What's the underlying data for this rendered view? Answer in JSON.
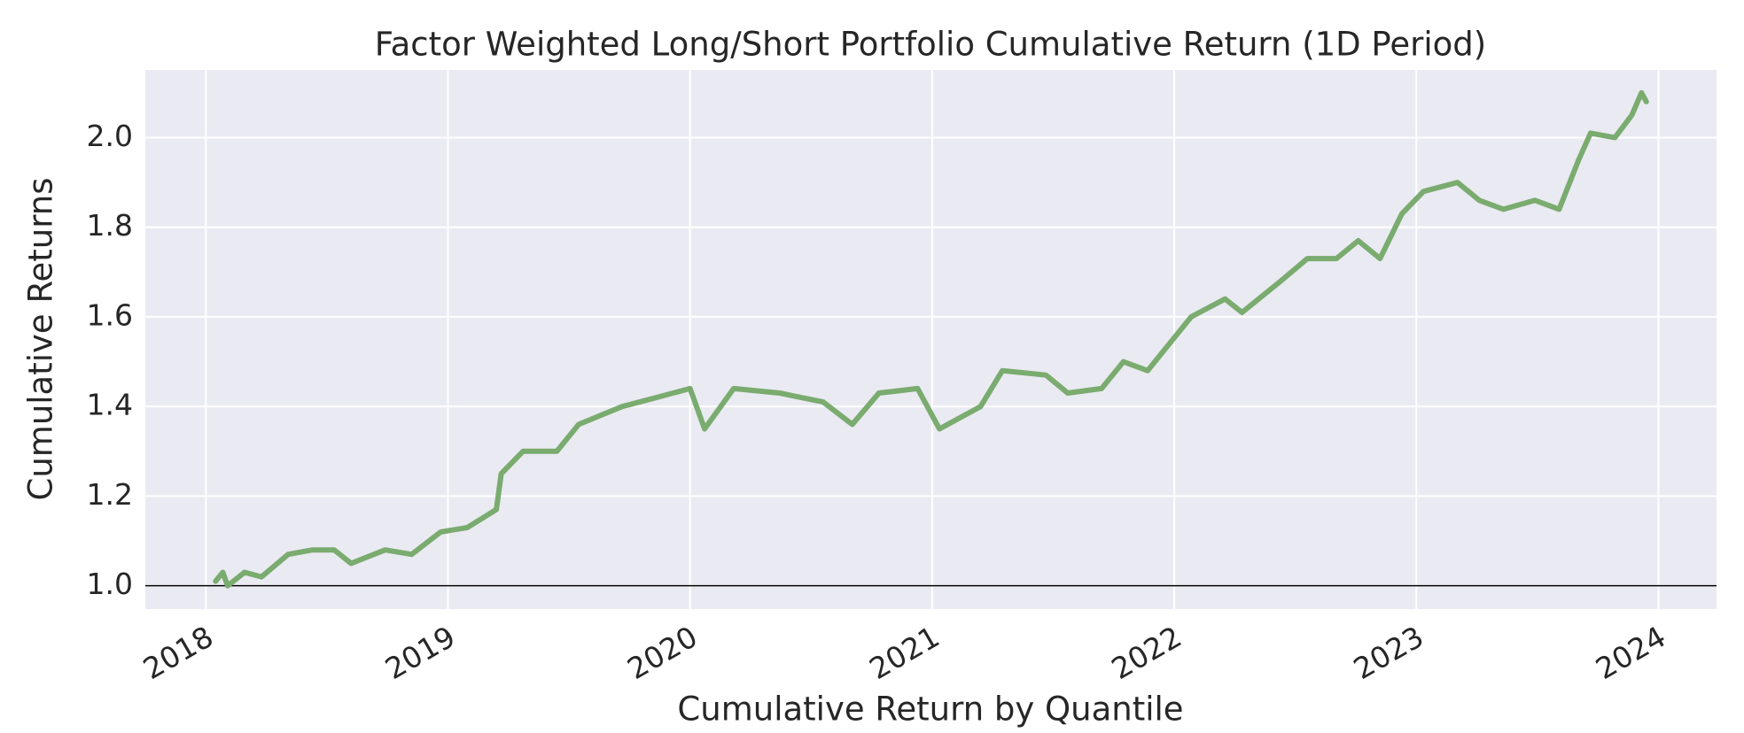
{
  "chart_data": {
    "type": "line",
    "title": "Factor Weighted Long/Short Portfolio Cumulative Return (1D Period)",
    "xlabel": "Cumulative Return by Quantile",
    "ylabel": "Cumulative Returns",
    "x": [
      2018.04,
      2018.07,
      2018.09,
      2018.16,
      2018.23,
      2018.34,
      2018.44,
      2018.53,
      2018.6,
      2018.74,
      2018.85,
      2018.97,
      2019.08,
      2019.2,
      2019.22,
      2019.31,
      2019.45,
      2019.54,
      2019.72,
      2019.86,
      2020.0,
      2020.06,
      2020.18,
      2020.37,
      2020.55,
      2020.67,
      2020.78,
      2020.94,
      2021.03,
      2021.2,
      2021.29,
      2021.47,
      2021.56,
      2021.7,
      2021.79,
      2021.89,
      2021.98,
      2022.07,
      2022.21,
      2022.28,
      2022.44,
      2022.55,
      2022.67,
      2022.76,
      2022.85,
      2022.94,
      2023.03,
      2023.17,
      2023.26,
      2023.36,
      2023.49,
      2023.59,
      2023.67,
      2023.72,
      2023.82,
      2023.89,
      2023.93,
      2023.95
    ],
    "values": [
      1.01,
      1.03,
      1.0,
      1.03,
      1.02,
      1.07,
      1.08,
      1.08,
      1.05,
      1.08,
      1.07,
      1.12,
      1.13,
      1.17,
      1.25,
      1.3,
      1.3,
      1.36,
      1.4,
      1.42,
      1.44,
      1.35,
      1.44,
      1.43,
      1.41,
      1.36,
      1.43,
      1.44,
      1.35,
      1.4,
      1.48,
      1.47,
      1.43,
      1.44,
      1.5,
      1.48,
      1.54,
      1.6,
      1.64,
      1.61,
      1.68,
      1.73,
      1.73,
      1.77,
      1.73,
      1.83,
      1.88,
      1.9,
      1.86,
      1.84,
      1.86,
      1.84,
      1.95,
      2.01,
      2.0,
      2.05,
      2.1,
      2.08
    ],
    "color": "#7aab6f",
    "xlim": [
      2017.75,
      2024.24
    ],
    "xticks": [
      2018,
      2019,
      2020,
      2021,
      2022,
      2023,
      2024
    ],
    "ylim": [
      0.948,
      2.151
    ],
    "yticks": [
      {
        "value": 1,
        "label": "1.0"
      },
      1.2,
      1.4,
      1.6,
      1.8,
      {
        "value": 2,
        "label": "2.0"
      }
    ],
    "hline": 1,
    "grid": true
  }
}
